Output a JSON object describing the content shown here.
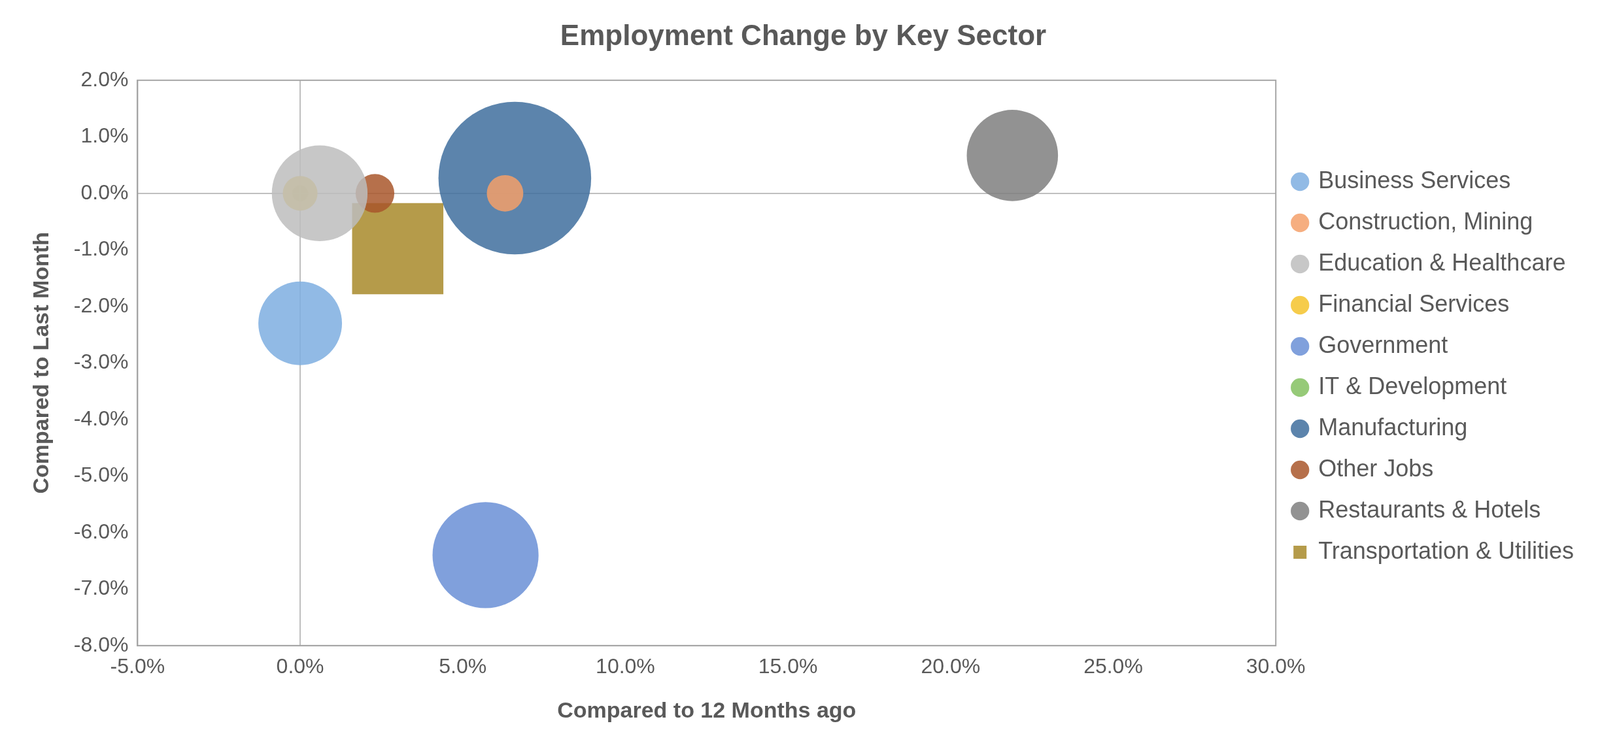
{
  "chart_data": {
    "type": "bubble",
    "title": "Employment Change by Key Sector",
    "x_label": "Compared to 12 Months ago",
    "y_label": "Compared to Last Month",
    "xlim": [
      -5,
      30
    ],
    "xticks": [
      {
        "value": -5,
        "label": "-5.0%"
      },
      {
        "value": 0,
        "label": "0.0%"
      },
      {
        "value": 5,
        "label": "5.0%"
      },
      {
        "value": 10,
        "label": "10.0%"
      },
      {
        "value": 15,
        "label": "15.0%"
      },
      {
        "value": 20,
        "label": "20.0%"
      },
      {
        "value": 25,
        "label": "25.0%"
      },
      {
        "value": 30,
        "label": "30.0%"
      }
    ],
    "ylim": [
      -8,
      2
    ],
    "yticks": [
      {
        "value": -8,
        "label": "-8.0%"
      },
      {
        "value": -7,
        "label": "-7.0%"
      },
      {
        "value": -6,
        "label": "-6.0%"
      },
      {
        "value": -5,
        "label": "-5.0%"
      },
      {
        "value": -4,
        "label": "-4.0%"
      },
      {
        "value": -3,
        "label": "-3.0%"
      },
      {
        "value": -2,
        "label": "-2.0%"
      },
      {
        "value": -1,
        "label": "-1.0%"
      },
      {
        "value": 0,
        "label": "0.0%"
      },
      {
        "value": 1,
        "label": "1.0%"
      },
      {
        "value": 2,
        "label": "2.0%"
      }
    ],
    "grid": false,
    "legend": "right",
    "series": [
      {
        "name": "Business Services",
        "color": "#7eaee0",
        "marker": "circle",
        "x": [
          0.0
        ],
        "values": [
          -2.3
        ],
        "sizes": [
          16.8
        ]
      },
      {
        "name": "Construction, Mining",
        "color": "#f4a06a",
        "marker": "circle",
        "x": [
          6.3
        ],
        "values": [
          0.0
        ],
        "sizes": [
          3.2
        ]
      },
      {
        "name": "Education & Healthcare",
        "color": "#bdbdbd",
        "marker": "circle",
        "x": [
          0.6
        ],
        "values": [
          0.0
        ],
        "sizes": [
          22
        ]
      },
      {
        "name": "Financial Services",
        "color": "#f5c32c",
        "marker": "circle",
        "x": [
          0.0
        ],
        "values": [
          0.0
        ],
        "sizes": [
          2.9
        ]
      },
      {
        "name": "Government",
        "color": "#6a8fd6",
        "marker": "circle",
        "x": [
          5.7
        ],
        "values": [
          -6.4
        ],
        "sizes": [
          27
        ]
      },
      {
        "name": "IT & Development",
        "color": "#84c160",
        "marker": "circle",
        "x": [
          0.0
        ],
        "values": [
          0.0
        ],
        "sizes": [
          0.64
        ]
      },
      {
        "name": "Manufacturing",
        "color": "#3f6e9e",
        "marker": "circle",
        "x": [
          6.6
        ],
        "values": [
          0.27
        ],
        "sizes": [
          56
        ]
      },
      {
        "name": "Other Jobs",
        "color": "#a9572c",
        "marker": "circle",
        "x": [
          2.3
        ],
        "values": [
          0.0
        ],
        "sizes": [
          3.6
        ]
      },
      {
        "name": "Restaurants & Hotels",
        "color": "#7f7f7f",
        "marker": "circle",
        "x": [
          21.9
        ],
        "values": [
          0.67
        ],
        "sizes": [
          20
        ]
      },
      {
        "name": "Transportation & Utilities",
        "color": "#a8892a",
        "marker": "square",
        "x": [
          3.0
        ],
        "values": [
          -0.98
        ],
        "sizes": [
          40
        ]
      }
    ]
  }
}
